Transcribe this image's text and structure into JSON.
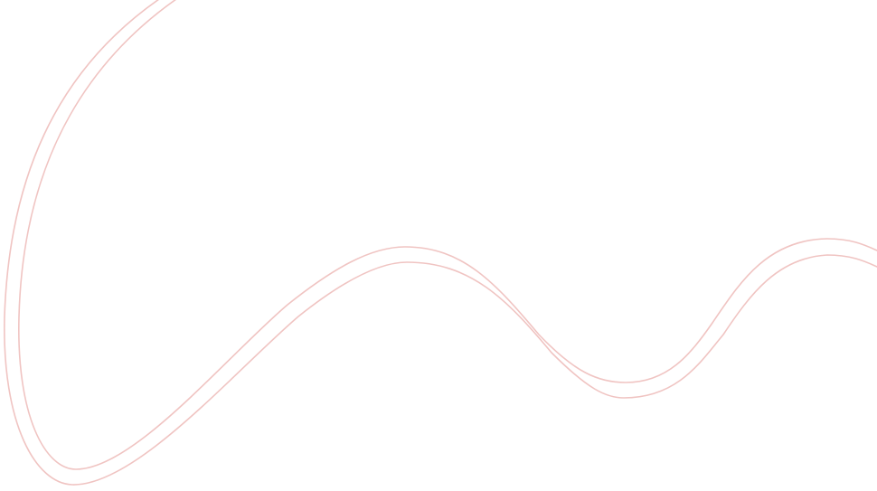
{
  "decoration": {
    "stroke_color": "#f0c4c2",
    "background_color": "#ffffff",
    "line_count": 2
  }
}
